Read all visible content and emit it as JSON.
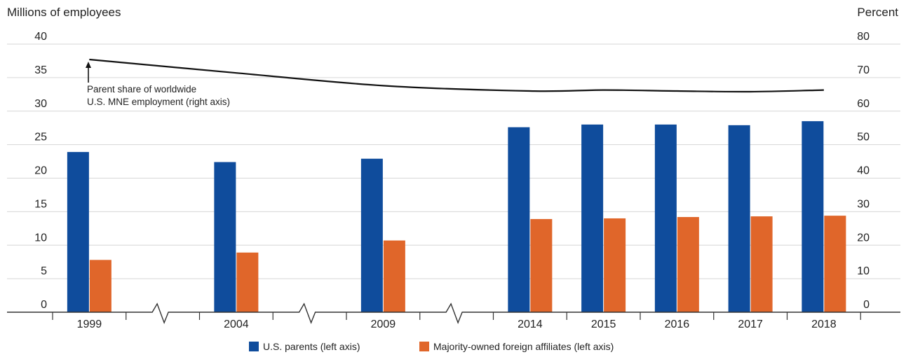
{
  "chart_data": {
    "type": "bar",
    "left_axis_title": "Millions of employees",
    "right_axis_title": "Percent",
    "left_ticks": [
      "0",
      "5",
      "10",
      "15",
      "20",
      "25",
      "30",
      "35",
      "40"
    ],
    "right_ticks": [
      "0",
      "10",
      "20",
      "30",
      "40",
      "50",
      "60",
      "70",
      "80"
    ],
    "ylim_left": [
      0,
      40
    ],
    "ylim_right": [
      0,
      80
    ],
    "grid": true,
    "categories": [
      "1999",
      "2004",
      "2009",
      "2014",
      "2015",
      "2016",
      "2017",
      "2018"
    ],
    "axis_breaks_after": [
      "1999",
      "2004",
      "2009"
    ],
    "series": [
      {
        "name": "U.S. parents (left axis)",
        "type": "bar",
        "axis": "left",
        "color": "#0f4c9c",
        "values": [
          23.9,
          22.4,
          22.9,
          27.6,
          28.0,
          28.0,
          27.9,
          28.5
        ]
      },
      {
        "name": "Majority-owned foreign affiliates (left axis)",
        "type": "bar",
        "axis": "left",
        "color": "#e0662a",
        "values": [
          7.8,
          8.9,
          10.7,
          13.9,
          14.0,
          14.2,
          14.3,
          14.4
        ]
      },
      {
        "name": "Parent share of worldwide U.S. MNE employment (right axis)",
        "type": "line",
        "axis": "right",
        "color": "#111111",
        "values": [
          75.4,
          71.4,
          67.6,
          66.0,
          66.3,
          66.0,
          65.8,
          66.3
        ]
      }
    ],
    "annotation": {
      "line1": "Parent share of worldwide",
      "line2": "U.S. MNE employment (right axis)"
    },
    "legend": {
      "position": "bottom-center",
      "items": [
        "U.S. parents (left axis)",
        "Majority-owned foreign affiliates (left axis)"
      ]
    }
  }
}
